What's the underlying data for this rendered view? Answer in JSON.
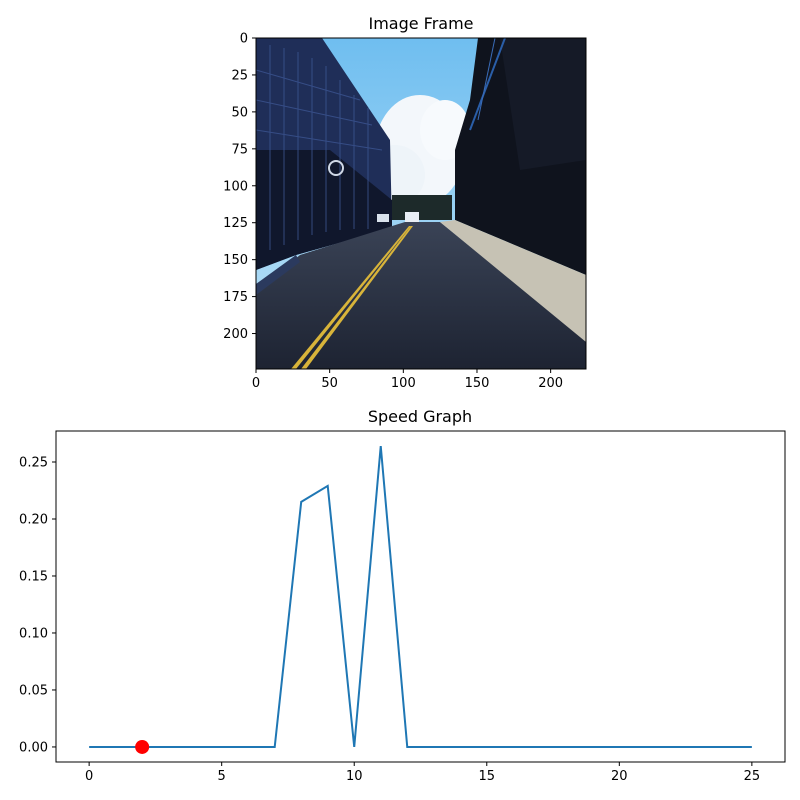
{
  "chart_data": [
    {
      "type": "image",
      "title": "Image Frame",
      "xlim": [
        0,
        224
      ],
      "ylim": [
        224,
        0
      ],
      "x_ticks": [
        0,
        50,
        100,
        150,
        200
      ],
      "y_ticks": [
        0,
        25,
        50,
        75,
        100,
        125,
        150,
        175,
        200
      ],
      "picture": "street scene: road with yellow center lines, buildings on both sides, blue sky",
      "colors": {
        "sky": "#7fc6f0",
        "cloud": "#f2f6fa",
        "building_left": "#1c2a52",
        "building_right": "#0e121c",
        "road": "#2a3344",
        "sidewalk": "#c9c4b6",
        "lane": "#d8b43a"
      }
    },
    {
      "type": "line",
      "title": "Speed Graph",
      "x": [
        0,
        1,
        2,
        3,
        4,
        5,
        6,
        7,
        8,
        9,
        10,
        11,
        12,
        13,
        14,
        15,
        16,
        17,
        18,
        19,
        20,
        21,
        22,
        23,
        24,
        25
      ],
      "series": [
        {
          "values": [
            0,
            0,
            0,
            0,
            0,
            0,
            0,
            0,
            0.215,
            0.229,
            0,
            0.264,
            0,
            0,
            0,
            0,
            0,
            0,
            0,
            0,
            0,
            0,
            0,
            0,
            0,
            0
          ],
          "color": "#1f77b4"
        }
      ],
      "marker": {
        "x": 2,
        "y": 0,
        "color": "#ff0000"
      },
      "xlim": [
        -1.25,
        26.25
      ],
      "ylim": [
        -0.0132,
        0.2772
      ],
      "x_ticks": [
        0,
        5,
        10,
        15,
        20,
        25
      ],
      "y_ticks": [
        0.0,
        0.05,
        0.1,
        0.15,
        0.2,
        0.25
      ],
      "y_tick_labels": [
        "0.00",
        "0.05",
        "0.10",
        "0.15",
        "0.20",
        "0.25"
      ],
      "grid": false
    }
  ]
}
